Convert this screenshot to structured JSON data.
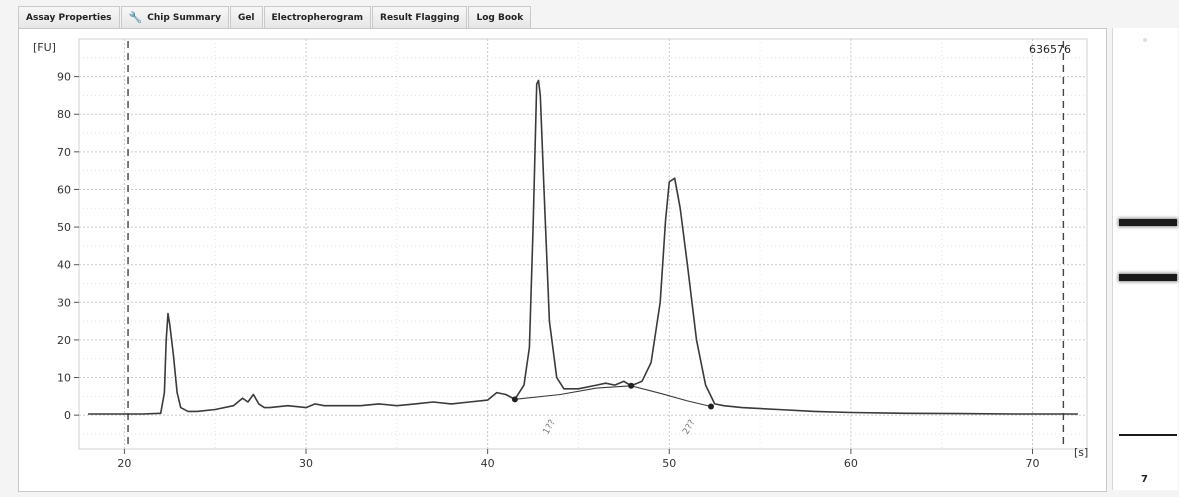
{
  "tabs": [
    {
      "label": "Assay Properties",
      "icon": ""
    },
    {
      "label": "Chip Summary",
      "icon": "wrench-icon"
    },
    {
      "label": "Gel",
      "icon": ""
    },
    {
      "label": "Electropherogram",
      "icon": ""
    },
    {
      "label": "Result Flagging",
      "icon": ""
    },
    {
      "label": "Log Book",
      "icon": ""
    }
  ],
  "gel": {
    "lane_label": "7",
    "bands": [
      {
        "level": 0.42,
        "strength": "strong"
      },
      {
        "level": 0.54,
        "strength": "strong"
      },
      {
        "level": 0.88,
        "strength": "thin"
      }
    ]
  },
  "colors": {
    "trace": "#3a3a3a",
    "grid": "#c8c8c8",
    "marker_line": "#444444"
  },
  "chart_data": {
    "type": "line",
    "title": "",
    "sample_id": "636576",
    "ylabel": "[FU]",
    "xlabel": "[s]",
    "xlim": [
      17.5,
      73
    ],
    "ylim": [
      -9,
      100
    ],
    "xticks": [
      20,
      30,
      40,
      50,
      60,
      70
    ],
    "yticks": [
      0,
      10,
      20,
      30,
      40,
      50,
      60,
      70,
      80,
      90
    ],
    "grid": true,
    "vertical_markers": [
      20.2,
      71.7
    ],
    "peak_labels": [
      {
        "text": "1??",
        "x": 43.3
      },
      {
        "text": "2??",
        "x": 51.0
      }
    ],
    "integration_points": [
      {
        "x": 41.5,
        "y": 4.2
      },
      {
        "x": 47.9,
        "y": 7.8
      },
      {
        "x": 52.3,
        "y": 2.3
      }
    ],
    "series": [
      {
        "x": [
          18.0,
          20.0,
          21.0,
          22.0,
          22.2,
          22.3,
          22.4,
          22.5,
          22.7,
          22.9,
          23.1,
          23.5,
          24,
          25,
          26,
          26.5,
          26.8,
          27.1,
          27.4,
          27.7,
          28,
          29,
          30,
          30.5,
          31,
          32,
          33,
          34,
          35,
          36,
          37,
          38,
          39,
          40,
          40.5,
          41,
          41.5,
          42,
          42.3,
          42.5,
          42.7,
          42.8,
          42.9,
          43.1,
          43.4,
          43.8,
          44.2,
          45,
          46,
          46.5,
          47,
          47.5,
          47.9,
          48.5,
          49,
          49.5,
          49.8,
          50.0,
          50.3,
          50.6,
          51,
          51.5,
          52,
          52.5,
          53,
          54,
          56,
          58,
          60,
          63,
          66,
          69,
          71,
          72.5
        ],
        "y": [
          0.3,
          0.3,
          0.3,
          0.5,
          6,
          20,
          27,
          24,
          16,
          6,
          2,
          1,
          1,
          1.5,
          2.5,
          4.5,
          3.5,
          5.5,
          3,
          2,
          2,
          2.5,
          2,
          3,
          2.5,
          2.5,
          2.5,
          3,
          2.5,
          3,
          3.5,
          3,
          3.5,
          4,
          6,
          5.5,
          4.2,
          8,
          18,
          50,
          88,
          89,
          85,
          60,
          25,
          10,
          7,
          7,
          8,
          8.5,
          8,
          9,
          7.8,
          9,
          14,
          30,
          52,
          62,
          63,
          55,
          40,
          20,
          8,
          3,
          2.5,
          2,
          1.5,
          1,
          0.7,
          0.5,
          0.4,
          0.3,
          0.3,
          0.3
        ]
      },
      {
        "x": [
          41.5,
          44,
          46,
          47.9
        ],
        "y": [
          4.2,
          5.5,
          7.2,
          7.8
        ]
      },
      {
        "x": [
          47.9,
          49.5,
          51,
          52.3
        ],
        "y": [
          7.8,
          5.8,
          3.8,
          2.3
        ]
      }
    ]
  }
}
